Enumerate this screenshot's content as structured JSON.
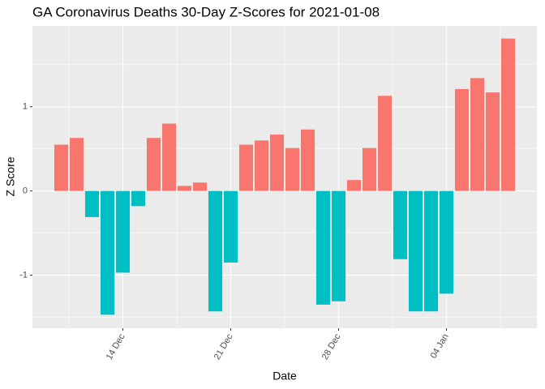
{
  "chart_data": {
    "type": "bar",
    "title": "GA Coronavirus Deaths 30-Day Z-Scores for 2021-01-08",
    "x_label": "Date",
    "y_label": "Z Score",
    "categories": [
      null,
      null,
      null,
      null,
      "14 Dec",
      null,
      null,
      null,
      null,
      null,
      null,
      "21 Dec",
      null,
      null,
      null,
      null,
      null,
      null,
      "28 Dec",
      null,
      null,
      null,
      null,
      null,
      null,
      "04 Jan",
      null,
      null,
      null,
      null
    ],
    "values": [
      0.55,
      0.63,
      -0.31,
      -1.47,
      -0.97,
      -0.18,
      0.63,
      0.8,
      0.06,
      0.1,
      -1.43,
      -0.85,
      0.55,
      0.6,
      0.67,
      0.51,
      0.73,
      -1.35,
      -1.31,
      0.13,
      0.51,
      1.13,
      -0.81,
      -1.43,
      -1.43,
      -1.22,
      1.21,
      1.34,
      1.17,
      1.81
    ],
    "colors": {
      "positive": "#F8766D",
      "negative": "#00BFC4"
    },
    "ylim": [
      -1.63,
      1.96
    ],
    "yticks": [
      -1,
      0,
      1
    ],
    "grid": true
  }
}
